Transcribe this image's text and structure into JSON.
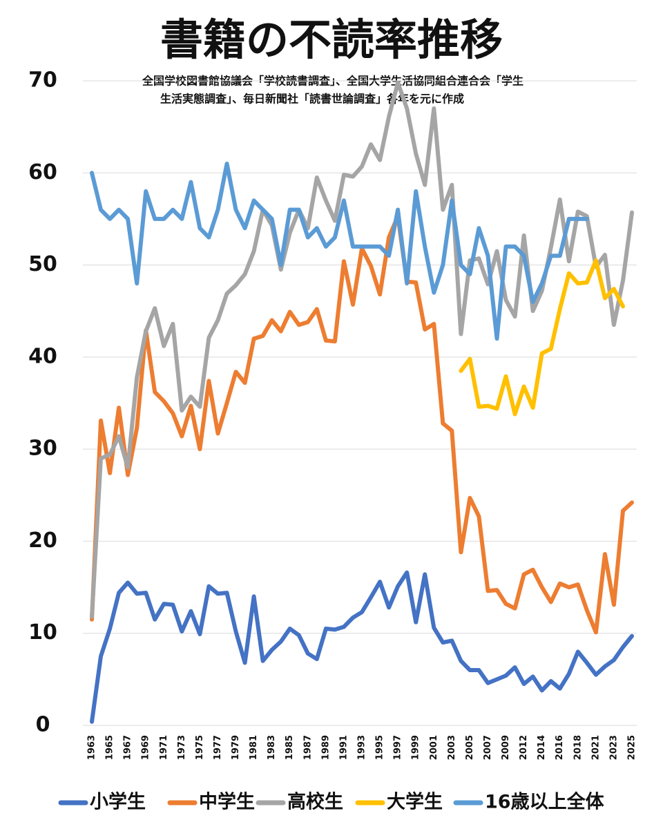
{
  "chart_data": {
    "type": "line",
    "title": "書籍の不読率推移",
    "subtitle": [
      "全国学校図書館協議会「学校読書調査」、全国大学生活協同組合連合会「学生",
      "生活実態調査」、毎日新聞社「読書世論調査」各年を元に作成"
    ],
    "categories": [
      "1963",
      null,
      "1965",
      null,
      "1967",
      null,
      "1969",
      null,
      "1971",
      null,
      "1973",
      null,
      "1975",
      null,
      "1977",
      null,
      "1979",
      null,
      "1981",
      null,
      "1983",
      null,
      "1985",
      null,
      "1987",
      null,
      "1989",
      null,
      "1991",
      null,
      "1993",
      null,
      "1995",
      null,
      "1997",
      null,
      "1999",
      null,
      "2001",
      null,
      "2003",
      null,
      "2005",
      null,
      "2007",
      null,
      "2009",
      null,
      "2012",
      null,
      "2014",
      null,
      "2016",
      null,
      "2018",
      null,
      "2021",
      null,
      "2023",
      null,
      "2025"
    ],
    "ylim": [
      0,
      70
    ],
    "yticks": [
      0,
      10,
      20,
      30,
      40,
      50,
      60,
      70
    ],
    "grid": true,
    "legend": "bottom",
    "series": [
      {
        "name": "小学生",
        "color": "#4472c4",
        "values": [
          0.4,
          7.5,
          10.5,
          14.4,
          15.5,
          14.3,
          14.4,
          11.5,
          13.2,
          13.1,
          10.2,
          12.4,
          9.9,
          15.1,
          14.3,
          14.4,
          10.2,
          6.8,
          14.0,
          7.0,
          8.2,
          9.1,
          10.5,
          9.8,
          7.8,
          7.2,
          10.5,
          10.4,
          10.7,
          11.7,
          12.3,
          13.9,
          15.6,
          12.8,
          15.1,
          16.6,
          11.2,
          16.4,
          10.6,
          9.0,
          9.2,
          7.0,
          6.0,
          6.0,
          4.6,
          5.0,
          5.4,
          6.3,
          4.5,
          5.3,
          3.8,
          4.8,
          4.0,
          5.6,
          8.0,
          6.8,
          5.5,
          6.4,
          7.1,
          8.5,
          9.7
        ]
      },
      {
        "name": "中学生",
        "color": "#ed7d31",
        "values": [
          11.5,
          33.1,
          27.4,
          34.5,
          27.2,
          32.3,
          42.9,
          36.2,
          35.2,
          33.9,
          31.4,
          34.7,
          30.0,
          37.4,
          31.7,
          35.0,
          38.4,
          37.2,
          42.0,
          42.3,
          44.0,
          42.8,
          44.9,
          43.5,
          43.8,
          45.2,
          41.8,
          41.7,
          50.4,
          45.7,
          51.8,
          49.9,
          46.8,
          53.0,
          55.3,
          48.2,
          48.1,
          43.0,
          43.6,
          32.8,
          32.0,
          18.8,
          24.7,
          22.7,
          14.6,
          14.7,
          13.2,
          12.7,
          16.4,
          16.9,
          15.0,
          13.4,
          15.4,
          15.0,
          15.3,
          12.5,
          10.1,
          18.6,
          13.1,
          23.3,
          24.2
        ]
      },
      {
        "name": "高校生",
        "color": "#a5a5a5",
        "values": [
          11.8,
          29.0,
          29.4,
          31.4,
          28.0,
          37.8,
          42.8,
          45.3,
          41.2,
          43.6,
          34.2,
          35.7,
          34.6,
          42.1,
          44.0,
          46.9,
          47.8,
          49.0,
          51.5,
          56.0,
          54.3,
          49.5,
          53.5,
          56.0,
          54.0,
          59.5,
          57.0,
          54.8,
          59.8,
          59.6,
          60.7,
          63.1,
          61.4,
          66.1,
          69.8,
          67.0,
          62.1,
          58.7,
          67.0,
          56.0,
          58.7,
          42.5,
          50.5,
          50.7,
          47.9,
          51.5,
          46.2,
          44.4,
          53.2,
          45.0,
          47.2,
          51.9,
          57.1,
          50.4,
          55.8,
          55.3,
          49.8,
          51.1,
          43.5,
          48.3,
          55.7
        ]
      },
      {
        "name": "大学生",
        "color": "#ffc000",
        "values": [
          null,
          null,
          null,
          null,
          null,
          null,
          null,
          null,
          null,
          null,
          null,
          null,
          null,
          null,
          null,
          null,
          null,
          null,
          null,
          null,
          null,
          null,
          null,
          null,
          null,
          null,
          null,
          null,
          null,
          null,
          null,
          null,
          null,
          null,
          null,
          null,
          null,
          null,
          null,
          null,
          null,
          38.5,
          39.8,
          34.6,
          34.7,
          34.4,
          37.9,
          33.8,
          36.8,
          34.5,
          40.4,
          40.9,
          45.2,
          49.1,
          48.0,
          48.1,
          50.5,
          46.4,
          47.4,
          45.5,
          null
        ]
      },
      {
        "name": "16歳以上全体",
        "color": "#5b9bd5",
        "values": [
          60,
          56,
          55,
          56,
          55,
          48,
          58,
          55,
          55,
          56,
          55,
          59,
          54,
          53,
          56,
          61,
          56,
          54,
          57,
          56,
          55,
          50,
          56,
          56,
          53,
          54,
          52,
          53,
          57,
          52,
          52,
          52,
          52,
          51,
          56,
          48,
          58,
          52,
          47,
          50,
          57,
          50,
          49,
          54,
          51,
          42,
          52,
          52,
          51,
          46,
          48,
          51,
          51,
          55,
          55,
          55,
          null,
          null,
          null,
          null,
          null
        ]
      }
    ]
  }
}
